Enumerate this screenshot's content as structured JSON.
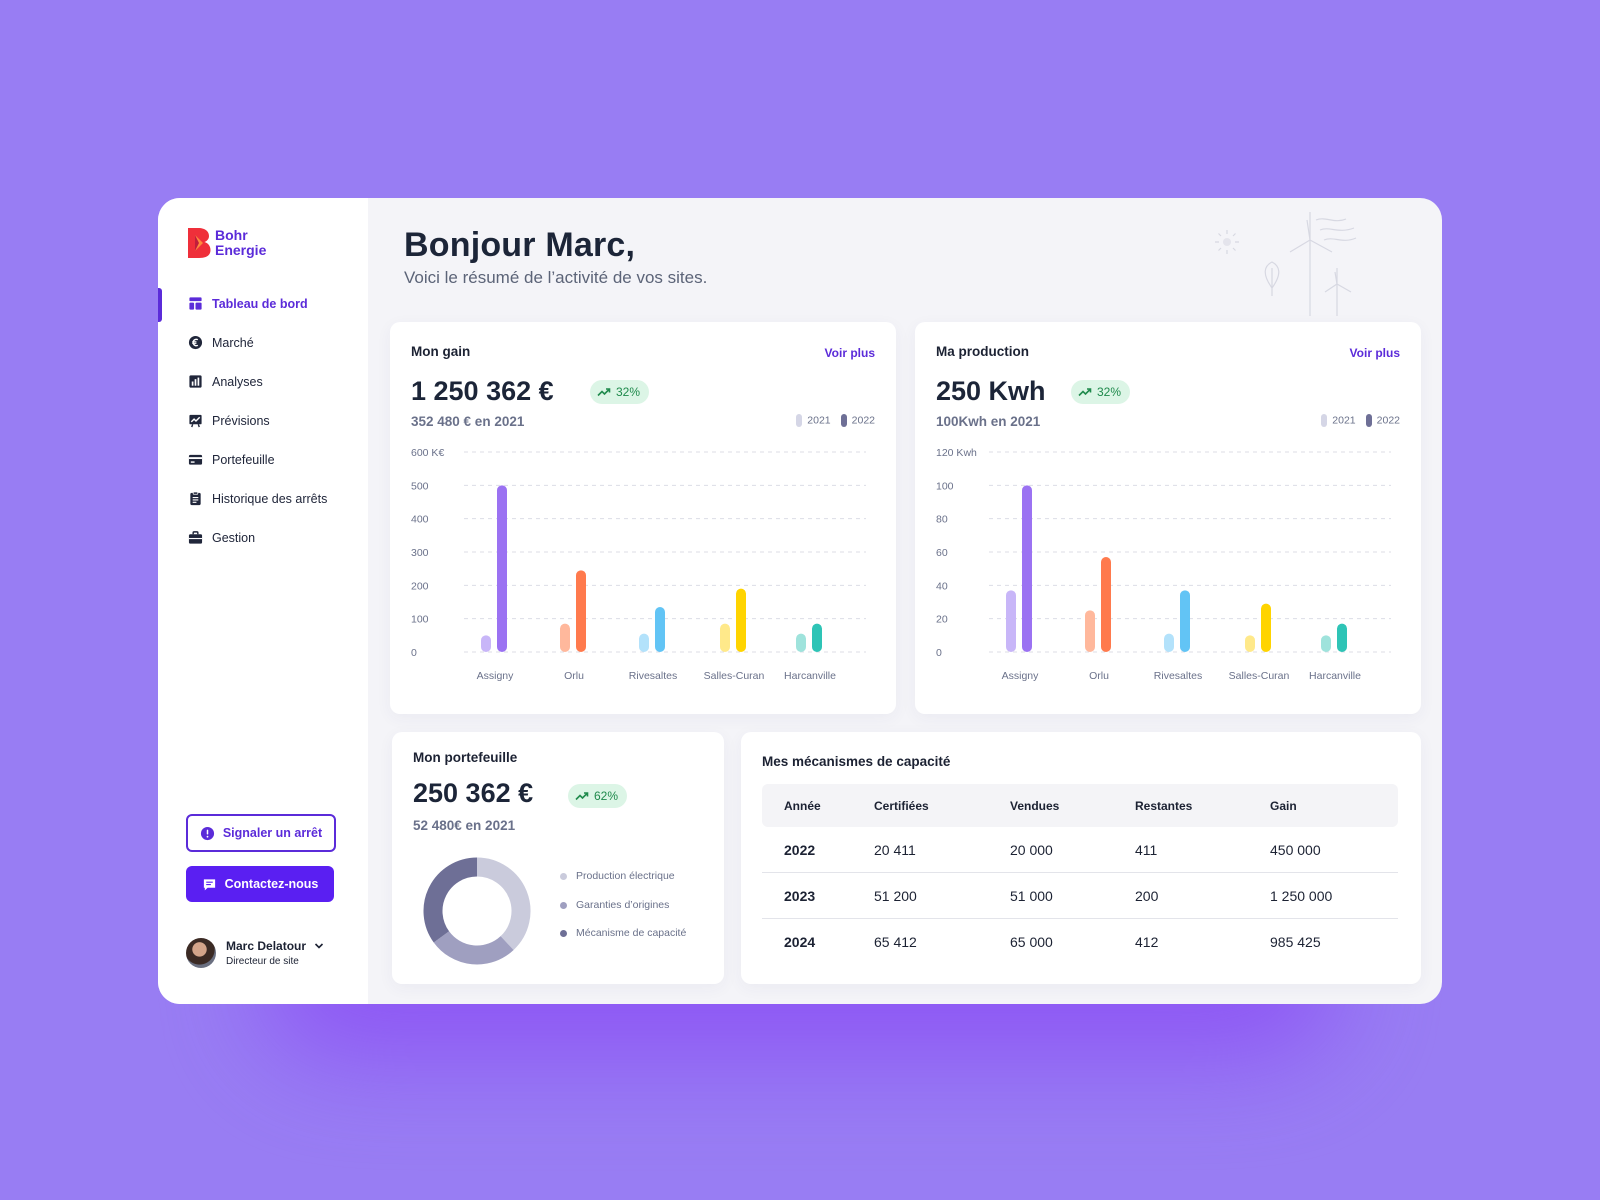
{
  "brand": {
    "line1": "Bohr",
    "line2": "Energie"
  },
  "nav": [
    {
      "label": "Tableau de bord",
      "icon": "dashboard-icon",
      "active": true
    },
    {
      "label": "Marché",
      "icon": "euro-icon"
    },
    {
      "label": "Analyses",
      "icon": "bar-chart-icon"
    },
    {
      "label": "Prévisions",
      "icon": "forecast-icon"
    },
    {
      "label": "Portefeuille",
      "icon": "card-icon"
    },
    {
      "label": "Historique des arrêts",
      "icon": "clipboard-icon"
    },
    {
      "label": "Gestion",
      "icon": "briefcase-icon"
    }
  ],
  "actions": {
    "report": "Signaler un arrêt",
    "contact": "Contactez-nous"
  },
  "user": {
    "name": "Marc Delatour",
    "role": "Directeur de site"
  },
  "header": {
    "title": "Bonjour Marc,",
    "subtitle": "Voici le résumé de l’activité de vos sites."
  },
  "colors": {
    "accent": "#5b2bd9",
    "site_2022": [
      "#9b72f2",
      "#ff7a4d",
      "#62c4f5",
      "#ffd400",
      "#2ec4b6"
    ],
    "site_2021": [
      "#c8b6f8",
      "#ffb89c",
      "#b3e2fb",
      "#ffe98a",
      "#9fe3dc"
    ],
    "legend_2021": "#d5d6e6",
    "legend_2022": "#6e6f96"
  },
  "gain": {
    "title": "Mon gain",
    "link": "Voir plus",
    "value": "1 250 362 €",
    "badge": "32%",
    "previous": "352 480 € en 2021",
    "legend": [
      "2021",
      "2022"
    ],
    "chart_data": {
      "type": "bar",
      "categories": [
        "Assigny",
        "Orlu",
        "Rivesaltes",
        "Salles-Curan",
        "Harcanville"
      ],
      "series": [
        {
          "name": "2021",
          "values": [
            50,
            85,
            55,
            85,
            55
          ]
        },
        {
          "name": "2022",
          "values": [
            500,
            245,
            135,
            190,
            85
          ]
        }
      ],
      "yticks": [
        "0",
        "100",
        "200",
        "300",
        "400",
        "500",
        "600 K€"
      ],
      "ylim": [
        0,
        600
      ]
    }
  },
  "production": {
    "title": "Ma production",
    "link": "Voir plus",
    "value": "250 Kwh",
    "badge": "32%",
    "previous": "100Kwh en 2021",
    "legend": [
      "2021",
      "2022"
    ],
    "chart_data": {
      "type": "bar",
      "categories": [
        "Assigny",
        "Orlu",
        "Rivesaltes",
        "Salles-Curan",
        "Harcanville"
      ],
      "series": [
        {
          "name": "2021",
          "values": [
            37,
            25,
            11,
            10,
            10
          ]
        },
        {
          "name": "2022",
          "values": [
            100,
            57,
            37,
            29,
            17
          ]
        }
      ],
      "yticks": [
        "0",
        "20",
        "40",
        "60",
        "80",
        "100",
        "120 Kwh"
      ],
      "ylim": [
        0,
        120
      ]
    }
  },
  "portfolio": {
    "title": "Mon portefeuille",
    "value": "250 362 €",
    "badge": "62%",
    "previous": "52 480€ en 2021",
    "legend": [
      "Production électrique",
      "Garanties d’origines",
      "Mécanisme de capacité"
    ],
    "chart_data": {
      "type": "pie",
      "labels": [
        "Production électrique",
        "Garanties d’origines",
        "Mécanisme de capacité"
      ],
      "values": [
        38,
        27,
        35
      ],
      "colors": [
        "#cacbdc",
        "#9f9fc0",
        "#6e6f96"
      ]
    }
  },
  "capacity": {
    "title": "Mes mécanismes de capacité",
    "columns": [
      "Année",
      "Certifiées",
      "Vendues",
      "Restantes",
      "Gain"
    ],
    "rows": [
      [
        "2022",
        "20 411",
        "20 000",
        "411",
        "450 000"
      ],
      [
        "2023",
        "51 200",
        "51 000",
        "200",
        "1 250 000"
      ],
      [
        "2024",
        "65 412",
        "65 000",
        "412",
        "985 425"
      ]
    ]
  }
}
